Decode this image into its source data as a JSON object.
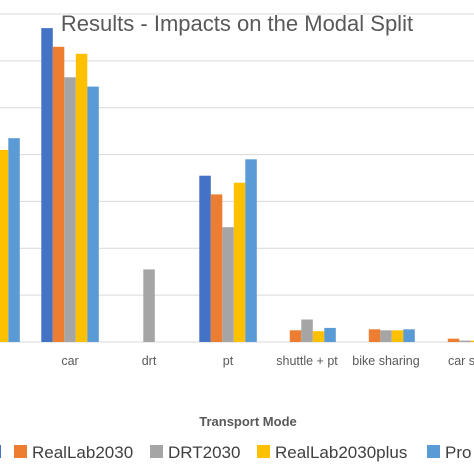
{
  "chart_data": {
    "type": "bar",
    "title": "Results - Impacts on the Modal Split",
    "xlabel": "Transport Mode",
    "ylabel": "",
    "categories": [
      "",
      "car",
      "drt",
      "pt",
      "shuttle + pt",
      "bike sharing",
      "car sh"
    ],
    "ylim": [
      0,
      70
    ],
    "grid": true,
    "legend_position": "bottom",
    "legend_visible_text": [
      "",
      "RealLab2030",
      "DRT2030",
      "RealLab2030plus",
      "Pro"
    ],
    "series": [
      {
        "name": "",
        "color": "#4472C4",
        "values": [
          null,
          67,
          0,
          35.5,
          0,
          0,
          0
        ]
      },
      {
        "name": "RealLab2030",
        "color": "#ED7D31",
        "values": [
          null,
          63,
          0,
          31.5,
          2.5,
          2.7,
          0.7
        ]
      },
      {
        "name": "DRT2030",
        "color": "#A5A5A5",
        "values": [
          null,
          56.5,
          15.5,
          24.5,
          4.8,
          2.5,
          0.3
        ]
      },
      {
        "name": "RealLab2030plus",
        "color": "#FFC000",
        "values": [
          41,
          61.5,
          0,
          34,
          2.3,
          2.5,
          0.3
        ]
      },
      {
        "name": "Pro",
        "color": "#5B9BD5",
        "values": [
          43.5,
          54.5,
          0,
          39,
          3.0,
          2.7,
          0.3
        ]
      }
    ]
  }
}
